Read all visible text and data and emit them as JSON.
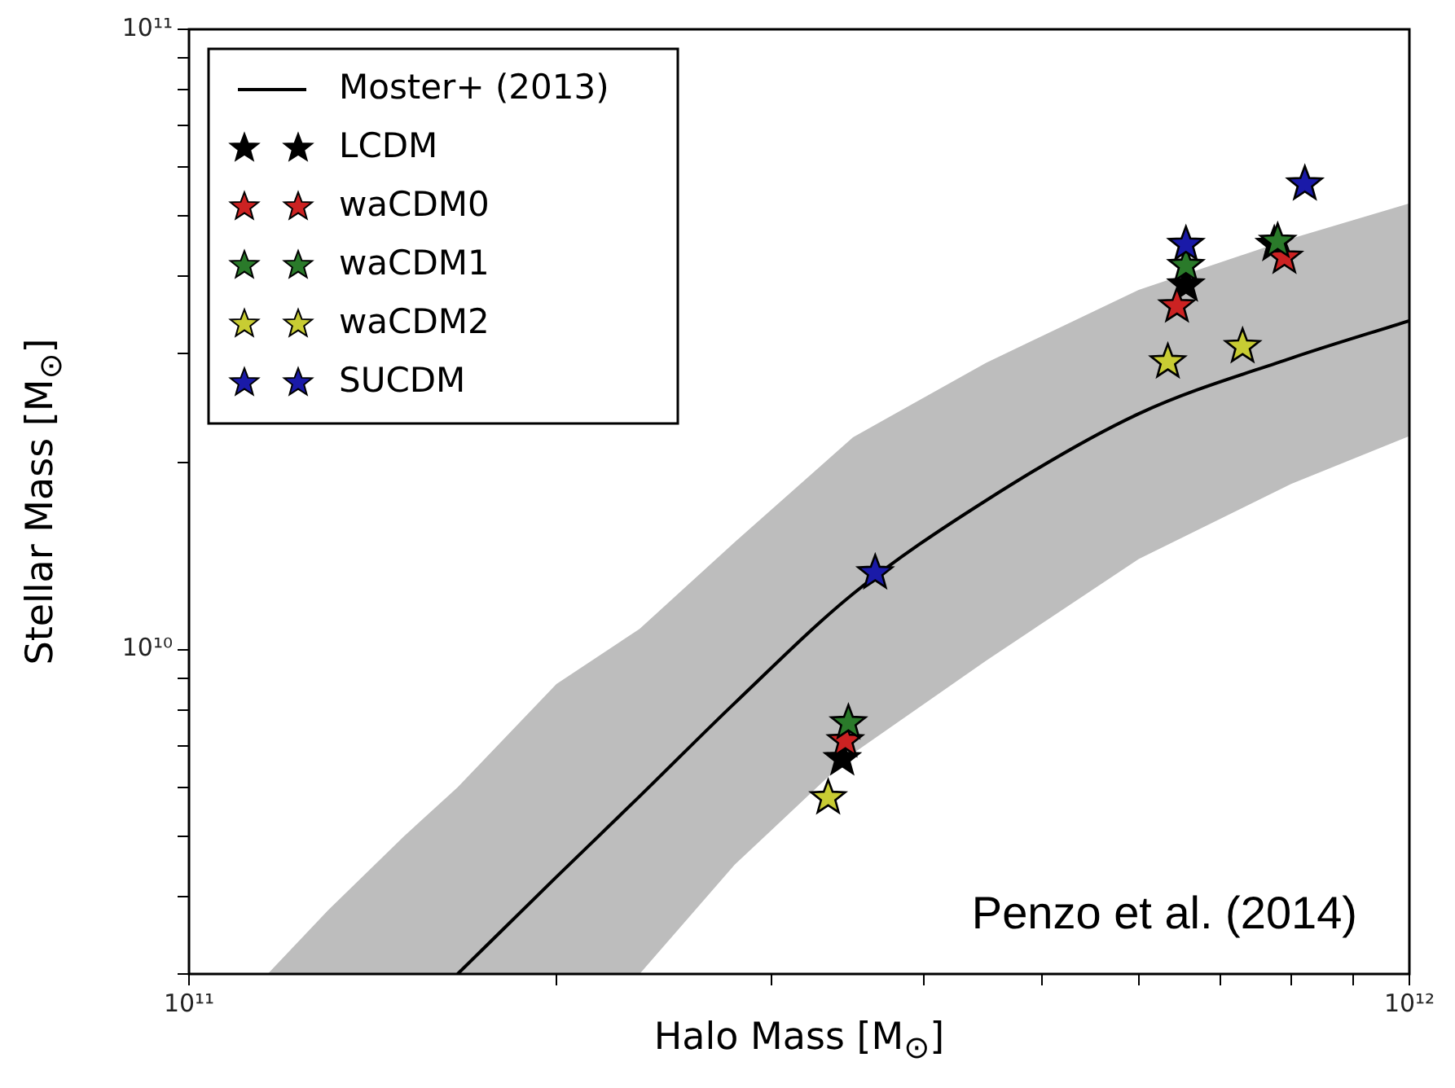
{
  "chart_data": {
    "type": "scatter",
    "xlabel": "Halo Mass [M$_{⊙}$]",
    "ylabel": "Stellar Mass [M$_{⊙}$]",
    "log": "xy",
    "grid": false,
    "legend": "top left",
    "marker": "star",
    "xlim": [
      100000000000.0,
      1000000000000.0
    ],
    "ylim": [
      3000000000.0,
      100000000000.0
    ],
    "xticks": [
      {
        "value": 100000000000.0,
        "label": "10¹¹"
      },
      {
        "value": 200000000000.0,
        "label": null
      },
      {
        "value": 300000000000.0,
        "label": null
      },
      {
        "value": 400000000000.0,
        "label": null
      },
      {
        "value": 500000000000.0,
        "label": null
      },
      {
        "value": 600000000000.0,
        "label": null
      },
      {
        "value": 700000000000.0,
        "label": null
      },
      {
        "value": 800000000000.0,
        "label": null
      },
      {
        "value": 900000000000.0,
        "label": null
      },
      {
        "value": 1000000000000.0,
        "label": "10¹²"
      }
    ],
    "yticks": [
      {
        "value": 3000000000.0,
        "label": null
      },
      {
        "value": 4000000000.0,
        "label": null
      },
      {
        "value": 5000000000.0,
        "label": null
      },
      {
        "value": 6000000000.0,
        "label": null
      },
      {
        "value": 7000000000.0,
        "label": null
      },
      {
        "value": 8000000000.0,
        "label": null
      },
      {
        "value": 9000000000.0,
        "label": null
      },
      {
        "value": 10000000000.0,
        "label": "10¹⁰"
      },
      {
        "value": 20000000000.0,
        "label": null
      },
      {
        "value": 30000000000.0,
        "label": null
      },
      {
        "value": 40000000000.0,
        "label": null
      },
      {
        "value": 50000000000.0,
        "label": null
      },
      {
        "value": 60000000000.0,
        "label": null
      },
      {
        "value": 70000000000.0,
        "label": null
      },
      {
        "value": 80000000000.0,
        "label": null
      },
      {
        "value": 90000000000.0,
        "label": null
      },
      {
        "value": 100000000000.0,
        "label": "10¹¹"
      }
    ],
    "annotations": [
      "Penzo et al. (2014)"
    ],
    "series": [
      {
        "name": "Moster+ (2013)",
        "type": "line",
        "marker": "none",
        "color": "#000000",
        "x": [
          116000000000.0,
          130000000000.0,
          150000000000.0,
          166000000000.0,
          200000000000.0,
          234000000000.0,
          280000000000.0,
          350000000000.0,
          450000000000.0,
          600000000000.0,
          800000000000.0,
          1000000000000.0
        ],
        "values": [
          null,
          null,
          null,
          3000000000.0,
          4300000000.0,
          5800000000.0,
          8200000000.0,
          12300000000.0,
          17400000000.0,
          24000000000.0,
          29500000000.0,
          33900000000.0
        ],
        "lower": [
          3000000000.0,
          3000000000.0,
          3000000000.0,
          3000000000.0,
          3000000000.0,
          3000000000.0,
          4500000000.0,
          6800000000.0,
          9600000000.0,
          14000000000.0,
          18500000000.0,
          22100000000.0
        ],
        "upper": [
          3000000000.0,
          3800000000.0,
          5000000000.0,
          6000000000.0,
          8800000000.0,
          10800000000.0,
          14900000000.0,
          22000000000.0,
          29000000000.0,
          38000000000.0,
          46000000000.0,
          52400000000.0
        ]
      },
      {
        "name": "LCDM",
        "color": "#000000",
        "x": [
          343000000000.0,
          656000000000.0,
          775000000000.0
        ],
        "values": [
          6670000000.0,
          38700000000.0,
          45000000000.0
        ]
      },
      {
        "name": "waCDM0",
        "color": "#cc2222",
        "x": [
          345000000000.0,
          645000000000.0,
          790000000000.0
        ],
        "values": [
          7130000000.0,
          35800000000.0,
          42900000000.0
        ]
      },
      {
        "name": "waCDM1",
        "color": "#2a7a2a",
        "x": [
          347000000000.0,
          656000000000.0,
          780000000000.0
        ],
        "values": [
          7620000000.0,
          41600000000.0,
          45500000000.0
        ]
      },
      {
        "name": "waCDM2",
        "color": "#c8cc33",
        "x": [
          334000000000.0,
          634000000000.0,
          730000000000.0
        ],
        "values": [
          5770000000.0,
          29100000000.0,
          30800000000.0
        ]
      },
      {
        "name": "SUCDM",
        "color": "#1a1aa8",
        "x": [
          365000000000.0,
          656000000000.0,
          821000000000.0
        ],
        "values": [
          13300000000.0,
          45000000000.0,
          56300000000.0
        ]
      }
    ]
  }
}
